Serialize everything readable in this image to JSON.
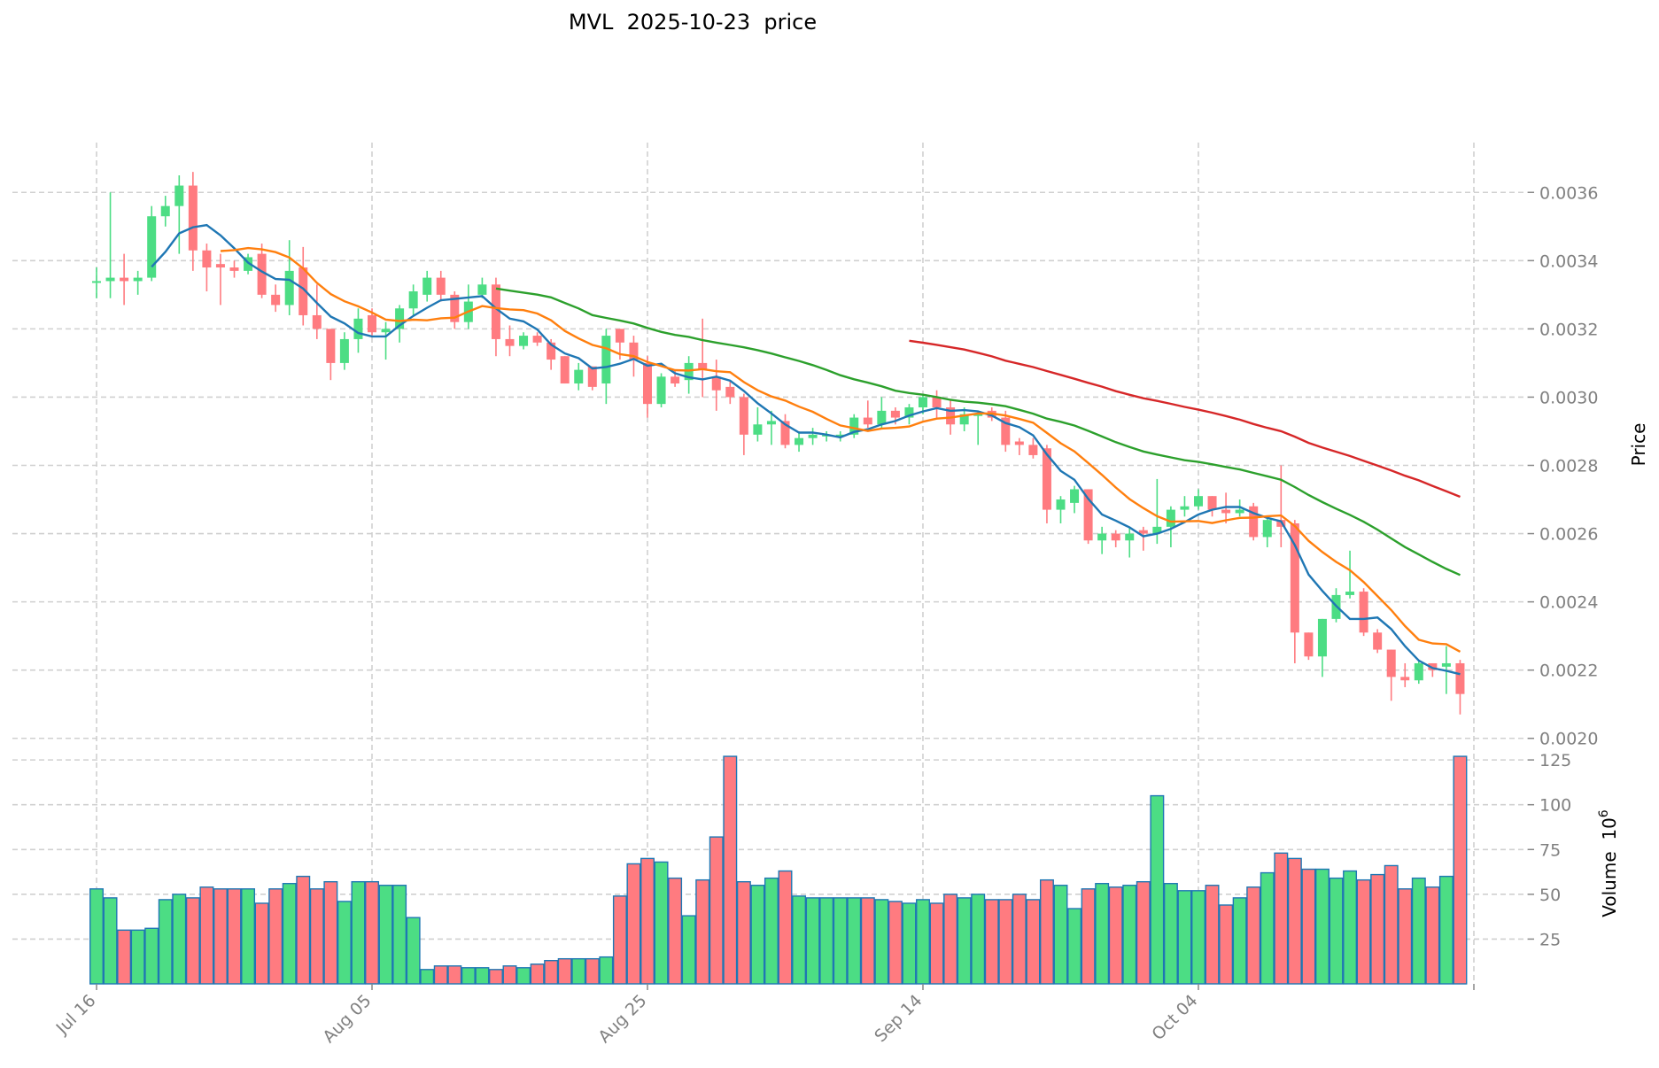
{
  "chart_data": {
    "type": "candlestick",
    "title": "MVL  2025-10-23  price",
    "ylabel": "Price",
    "volume_label": "Volume  10",
    "volume_exponent": "6",
    "start_date": "2025-07-16",
    "ylim": [
      0.001963,
      0.003746
    ],
    "volume_ylim": [
      0,
      130
    ],
    "yticks": [
      "0.0020",
      "0.0022",
      "0.0024",
      "0.0026",
      "0.0028",
      "0.0030",
      "0.0032",
      "0.0034",
      "0.0036"
    ],
    "volume_ticks": [
      "25",
      "50",
      "75",
      "100",
      "125"
    ],
    "xtick_indices": [
      0,
      20,
      40,
      60,
      80
    ],
    "xtick_labels": [
      "Jul 16",
      "Aug 05",
      "Aug 25",
      "Sep 14",
      "Oct 04"
    ],
    "grid": true,
    "colors": {
      "up": "#4cdd84",
      "down": "#ff7b80",
      "volume_edge": "#1f77b4",
      "ma5": "#1f77b4",
      "ma10": "#ff7f0e",
      "ma30": "#2ca02c",
      "ma60": "#d62728"
    },
    "moving_averages": [
      5,
      10,
      30,
      60
    ],
    "ohlc": [
      [
        0.00334,
        0.00338,
        0.00329,
        0.00334
      ],
      [
        0.00334,
        0.0036,
        0.00329,
        0.00335
      ],
      [
        0.00335,
        0.00342,
        0.00327,
        0.00334
      ],
      [
        0.00334,
        0.00337,
        0.0033,
        0.00335
      ],
      [
        0.00335,
        0.00356,
        0.00334,
        0.00353
      ],
      [
        0.00353,
        0.00359,
        0.0035,
        0.00356
      ],
      [
        0.00356,
        0.00365,
        0.00342,
        0.00362
      ],
      [
        0.00362,
        0.00366,
        0.00337,
        0.00343
      ],
      [
        0.00343,
        0.00345,
        0.00331,
        0.00338
      ],
      [
        0.00339,
        0.00342,
        0.00327,
        0.00338
      ],
      [
        0.00338,
        0.0034,
        0.00335,
        0.00337
      ],
      [
        0.00337,
        0.00342,
        0.00336,
        0.00341
      ],
      [
        0.00342,
        0.00345,
        0.00329,
        0.0033
      ],
      [
        0.0033,
        0.00333,
        0.00325,
        0.00327
      ],
      [
        0.00327,
        0.00346,
        0.00324,
        0.00337
      ],
      [
        0.00338,
        0.00344,
        0.00321,
        0.00324
      ],
      [
        0.00324,
        0.00333,
        0.00317,
        0.0032
      ],
      [
        0.0032,
        0.0032,
        0.00305,
        0.0031
      ],
      [
        0.0031,
        0.00319,
        0.00308,
        0.00317
      ],
      [
        0.00317,
        0.00326,
        0.00313,
        0.00323
      ],
      [
        0.00324,
        0.00326,
        0.00318,
        0.00319
      ],
      [
        0.00319,
        0.00322,
        0.00311,
        0.0032
      ],
      [
        0.0032,
        0.00327,
        0.00316,
        0.00326
      ],
      [
        0.00326,
        0.00333,
        0.00324,
        0.00331
      ],
      [
        0.0033,
        0.00337,
        0.00328,
        0.00335
      ],
      [
        0.00335,
        0.00337,
        0.00328,
        0.0033
      ],
      [
        0.0033,
        0.00331,
        0.0032,
        0.00322
      ],
      [
        0.00322,
        0.00333,
        0.0032,
        0.00328
      ],
      [
        0.0033,
        0.00335,
        0.00329,
        0.00333
      ],
      [
        0.00333,
        0.00335,
        0.00312,
        0.00317
      ],
      [
        0.00317,
        0.00321,
        0.00312,
        0.00315
      ],
      [
        0.00315,
        0.00319,
        0.00314,
        0.00318
      ],
      [
        0.00318,
        0.00319,
        0.00315,
        0.00316
      ],
      [
        0.00316,
        0.00317,
        0.00308,
        0.00311
      ],
      [
        0.00312,
        0.00312,
        0.00304,
        0.00304
      ],
      [
        0.00304,
        0.0031,
        0.00302,
        0.00308
      ],
      [
        0.00309,
        0.00309,
        0.00302,
        0.00303
      ],
      [
        0.00304,
        0.0032,
        0.00298,
        0.00318
      ],
      [
        0.0032,
        0.0032,
        0.00311,
        0.00316
      ],
      [
        0.00316,
        0.00318,
        0.00306,
        0.00311
      ],
      [
        0.0031,
        0.00312,
        0.00294,
        0.00298
      ],
      [
        0.00298,
        0.00307,
        0.00297,
        0.00306
      ],
      [
        0.00306,
        0.00308,
        0.00303,
        0.00304
      ],
      [
        0.00305,
        0.00312,
        0.00301,
        0.0031
      ],
      [
        0.0031,
        0.00323,
        0.003,
        0.00308
      ],
      [
        0.00306,
        0.00311,
        0.00296,
        0.00302
      ],
      [
        0.00303,
        0.00305,
        0.00298,
        0.003
      ],
      [
        0.003,
        0.00301,
        0.00283,
        0.00289
      ],
      [
        0.00289,
        0.00297,
        0.00287,
        0.00292
      ],
      [
        0.00292,
        0.00296,
        0.00286,
        0.00293
      ],
      [
        0.00293,
        0.00295,
        0.00285,
        0.00286
      ],
      [
        0.00286,
        0.0029,
        0.00284,
        0.00288
      ],
      [
        0.00288,
        0.00291,
        0.00286,
        0.00289
      ],
      [
        0.00289,
        0.0029,
        0.00287,
        0.00289
      ],
      [
        0.00289,
        0.0029,
        0.00287,
        0.00289
      ],
      [
        0.00289,
        0.00295,
        0.00288,
        0.00294
      ],
      [
        0.00294,
        0.00299,
        0.00291,
        0.00292
      ],
      [
        0.00292,
        0.003,
        0.00291,
        0.00296
      ],
      [
        0.00296,
        0.00297,
        0.00292,
        0.00294
      ],
      [
        0.00294,
        0.00298,
        0.00292,
        0.00297
      ],
      [
        0.00297,
        0.00301,
        0.00295,
        0.003
      ],
      [
        0.003,
        0.00302,
        0.00294,
        0.00297
      ],
      [
        0.00297,
        0.00299,
        0.00289,
        0.00292
      ],
      [
        0.00292,
        0.00297,
        0.0029,
        0.00295
      ],
      [
        0.00295,
        0.00296,
        0.00286,
        0.00295
      ],
      [
        0.00296,
        0.00297,
        0.00293,
        0.00294
      ],
      [
        0.00294,
        0.00296,
        0.00284,
        0.00286
      ],
      [
        0.00287,
        0.00288,
        0.00283,
        0.00286
      ],
      [
        0.00286,
        0.00288,
        0.00282,
        0.00283
      ],
      [
        0.00285,
        0.00286,
        0.00263,
        0.00267
      ],
      [
        0.00267,
        0.00271,
        0.00263,
        0.0027
      ],
      [
        0.00269,
        0.00274,
        0.00266,
        0.00273
      ],
      [
        0.00273,
        0.00273,
        0.00257,
        0.00258
      ],
      [
        0.00258,
        0.00262,
        0.00254,
        0.0026
      ],
      [
        0.0026,
        0.00261,
        0.00256,
        0.00258
      ],
      [
        0.00258,
        0.00262,
        0.00253,
        0.0026
      ],
      [
        0.00261,
        0.00262,
        0.00255,
        0.0026
      ],
      [
        0.0026,
        0.00276,
        0.00257,
        0.00262
      ],
      [
        0.00262,
        0.00268,
        0.00256,
        0.00267
      ],
      [
        0.00267,
        0.00271,
        0.00265,
        0.00268
      ],
      [
        0.00268,
        0.00273,
        0.00267,
        0.00271
      ],
      [
        0.00271,
        0.00271,
        0.00265,
        0.00267
      ],
      [
        0.00267,
        0.00272,
        0.00263,
        0.00266
      ],
      [
        0.00266,
        0.0027,
        0.00265,
        0.00267
      ],
      [
        0.00268,
        0.00269,
        0.00258,
        0.00259
      ],
      [
        0.00259,
        0.00265,
        0.00256,
        0.00264
      ],
      [
        0.00264,
        0.0028,
        0.00256,
        0.00262
      ],
      [
        0.00263,
        0.00264,
        0.00222,
        0.00231
      ],
      [
        0.00231,
        0.00231,
        0.00223,
        0.00224
      ],
      [
        0.00224,
        0.00235,
        0.00218,
        0.00235
      ],
      [
        0.00235,
        0.00244,
        0.00234,
        0.00242
      ],
      [
        0.00242,
        0.00255,
        0.00241,
        0.00243
      ],
      [
        0.00243,
        0.00244,
        0.0023,
        0.00231
      ],
      [
        0.00231,
        0.00232,
        0.00225,
        0.00226
      ],
      [
        0.00226,
        0.00226,
        0.00211,
        0.00218
      ],
      [
        0.00218,
        0.00222,
        0.00215,
        0.00217
      ],
      [
        0.00217,
        0.00223,
        0.00216,
        0.00222
      ],
      [
        0.00222,
        0.00222,
        0.00218,
        0.0022
      ],
      [
        0.00221,
        0.00227,
        0.00213,
        0.00222
      ],
      [
        0.00222,
        0.00223,
        0.00207,
        0.00213
      ]
    ],
    "volume": [
      53,
      48,
      30,
      30,
      31,
      47,
      50,
      48,
      54,
      53,
      53,
      53,
      45,
      53,
      56,
      60,
      53,
      57,
      46,
      57,
      57,
      55,
      55,
      37,
      8,
      10,
      10,
      9,
      9,
      8,
      10,
      9,
      11,
      13,
      14,
      14,
      14,
      15,
      49,
      67,
      70,
      68,
      59,
      38,
      58,
      82,
      127,
      57,
      55,
      59,
      63,
      49,
      48,
      48,
      48,
      48,
      48,
      47,
      46,
      45,
      47,
      45,
      50,
      48,
      50,
      47,
      47,
      50,
      47,
      58,
      55,
      42,
      53,
      56,
      54,
      55,
      57,
      105,
      56,
      52,
      52,
      55,
      44,
      48,
      54,
      62,
      73,
      70,
      64,
      64,
      59,
      63,
      58,
      61,
      66,
      53,
      59,
      54,
      60,
      127
    ]
  }
}
